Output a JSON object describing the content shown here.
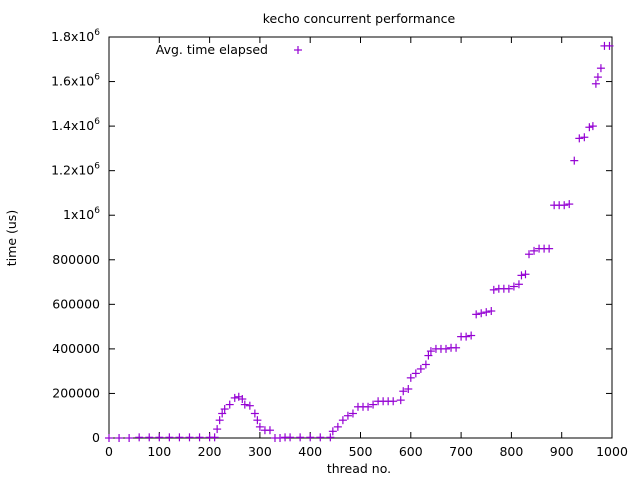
{
  "chart_data": {
    "type": "scatter",
    "title": "kecho concurrent performance",
    "xlabel": "thread no.",
    "ylabel": "time (us)",
    "xlim": [
      0,
      1000
    ],
    "ylim": [
      0,
      1800000
    ],
    "x_ticks": [
      "0",
      "100",
      "200",
      "300",
      "400",
      "500",
      "600",
      "700",
      "800",
      "900",
      "1000"
    ],
    "y_ticks": [
      {
        "base": "0",
        "exp": ""
      },
      {
        "base": "200000",
        "exp": ""
      },
      {
        "base": "400000",
        "exp": ""
      },
      {
        "base": "600000",
        "exp": ""
      },
      {
        "base": "800000",
        "exp": ""
      },
      {
        "base": "1x10",
        "exp": "6"
      },
      {
        "base": "1.2x10",
        "exp": "6"
      },
      {
        "base": "1.4x10",
        "exp": "6"
      },
      {
        "base": "1.6x10",
        "exp": "6"
      },
      {
        "base": "1.8x10",
        "exp": "6"
      }
    ],
    "grid": false,
    "legend_position": "top-left inside",
    "marker": "plus",
    "series": [
      {
        "name": "Avg. time elapsed",
        "color": "#9400d3",
        "points": [
          [
            0,
            0
          ],
          [
            20,
            0
          ],
          [
            40,
            0
          ],
          [
            60,
            3000
          ],
          [
            80,
            3000
          ],
          [
            100,
            3000
          ],
          [
            120,
            3000
          ],
          [
            140,
            3000
          ],
          [
            160,
            3000
          ],
          [
            180,
            3000
          ],
          [
            200,
            3000
          ],
          [
            210,
            3000
          ],
          [
            215,
            40000
          ],
          [
            220,
            80000
          ],
          [
            225,
            110000
          ],
          [
            230,
            130000
          ],
          [
            240,
            150000
          ],
          [
            250,
            180000
          ],
          [
            258,
            185000
          ],
          [
            265,
            175000
          ],
          [
            270,
            150000
          ],
          [
            280,
            145000
          ],
          [
            290,
            110000
          ],
          [
            295,
            80000
          ],
          [
            300,
            50000
          ],
          [
            310,
            35000
          ],
          [
            320,
            35000
          ],
          [
            330,
            0
          ],
          [
            340,
            0
          ],
          [
            350,
            3000
          ],
          [
            360,
            3000
          ],
          [
            380,
            3000
          ],
          [
            400,
            3000
          ],
          [
            420,
            3000
          ],
          [
            440,
            3000
          ],
          [
            445,
            30000
          ],
          [
            455,
            50000
          ],
          [
            465,
            80000
          ],
          [
            475,
            100000
          ],
          [
            485,
            110000
          ],
          [
            495,
            140000
          ],
          [
            505,
            140000
          ],
          [
            515,
            140000
          ],
          [
            525,
            150000
          ],
          [
            535,
            165000
          ],
          [
            545,
            165000
          ],
          [
            555,
            165000
          ],
          [
            565,
            165000
          ],
          [
            580,
            170000
          ],
          [
            585,
            210000
          ],
          [
            595,
            220000
          ],
          [
            600,
            270000
          ],
          [
            610,
            290000
          ],
          [
            620,
            310000
          ],
          [
            630,
            330000
          ],
          [
            635,
            370000
          ],
          [
            640,
            390000
          ],
          [
            650,
            400000
          ],
          [
            660,
            400000
          ],
          [
            670,
            400000
          ],
          [
            680,
            405000
          ],
          [
            690,
            405000
          ],
          [
            700,
            455000
          ],
          [
            710,
            455000
          ],
          [
            720,
            460000
          ],
          [
            730,
            555000
          ],
          [
            740,
            560000
          ],
          [
            750,
            565000
          ],
          [
            760,
            570000
          ],
          [
            765,
            665000
          ],
          [
            775,
            670000
          ],
          [
            785,
            670000
          ],
          [
            795,
            670000
          ],
          [
            805,
            680000
          ],
          [
            815,
            690000
          ],
          [
            820,
            730000
          ],
          [
            828,
            735000
          ],
          [
            835,
            825000
          ],
          [
            845,
            840000
          ],
          [
            855,
            850000
          ],
          [
            865,
            850000
          ],
          [
            875,
            850000
          ],
          [
            885,
            1045000
          ],
          [
            895,
            1045000
          ],
          [
            905,
            1045000
          ],
          [
            915,
            1050000
          ],
          [
            925,
            1245000
          ],
          [
            935,
            1345000
          ],
          [
            945,
            1350000
          ],
          [
            955,
            1395000
          ],
          [
            962,
            1400000
          ],
          [
            968,
            1590000
          ],
          [
            972,
            1620000
          ],
          [
            978,
            1660000
          ],
          [
            985,
            1760000
          ],
          [
            995,
            1760000
          ]
        ]
      }
    ]
  }
}
